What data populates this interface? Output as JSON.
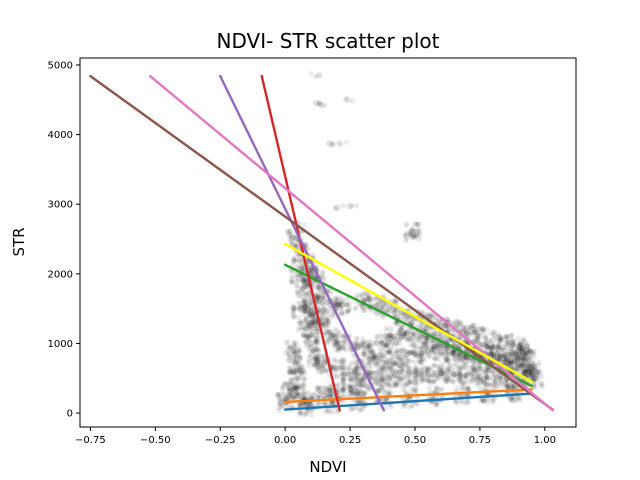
{
  "chart_data": {
    "type": "scatter",
    "title": "NDVI- STR scatter plot",
    "xlabel": "NDVI",
    "ylabel": "STR",
    "xlim": [
      -0.79,
      1.12
    ],
    "ylim": [
      -200,
      5100
    ],
    "x_ticks": [
      -0.75,
      -0.5,
      -0.25,
      0.0,
      0.25,
      0.5,
      0.75,
      1.0
    ],
    "x_tick_labels": [
      "−0.75",
      "−0.50",
      "−0.25",
      "0.00",
      "0.25",
      "0.50",
      "0.75",
      "1.00"
    ],
    "y_ticks": [
      0,
      1000,
      2000,
      3000,
      4000,
      5000
    ],
    "y_tick_labels": [
      "0",
      "1000",
      "2000",
      "3000",
      "4000",
      "5000"
    ],
    "grid": false,
    "scatter_color": "#000000",
    "scatter_points": [
      [
        0.13,
        4850
      ],
      [
        0.14,
        4420
      ],
      [
        0.12,
        4450
      ],
      [
        0.24,
        4500
      ],
      [
        0.17,
        3870
      ],
      [
        0.21,
        3870
      ],
      [
        0.25,
        2970
      ],
      [
        0.2,
        2950
      ],
      [
        0.49,
        2610
      ],
      [
        0.05,
        2720
      ],
      [
        0.04,
        2500
      ],
      [
        0.06,
        2300
      ],
      [
        0.08,
        2150
      ],
      [
        0.05,
        2000
      ],
      [
        0.1,
        2000
      ],
      [
        0.07,
        1800
      ],
      [
        0.12,
        1900
      ],
      [
        0.1,
        1600
      ],
      [
        0.15,
        1700
      ],
      [
        0.06,
        1500
      ],
      [
        0.12,
        1400
      ],
      [
        0.18,
        1500
      ],
      [
        0.22,
        1550
      ],
      [
        0.3,
        1600
      ],
      [
        0.35,
        1550
      ],
      [
        0.4,
        1500
      ],
      [
        0.45,
        1400
      ],
      [
        0.5,
        1350
      ],
      [
        0.55,
        1300
      ],
      [
        0.6,
        1250
      ],
      [
        0.65,
        1200
      ],
      [
        0.7,
        1150
      ],
      [
        0.75,
        1100
      ],
      [
        0.8,
        1050
      ],
      [
        0.85,
        1000
      ],
      [
        0.9,
        950
      ],
      [
        0.93,
        900
      ],
      [
        0.08,
        1200
      ],
      [
        0.1,
        1000
      ],
      [
        0.12,
        800
      ],
      [
        0.15,
        700
      ],
      [
        0.2,
        650
      ],
      [
        0.25,
        600
      ],
      [
        0.3,
        650
      ],
      [
        0.35,
        700
      ],
      [
        0.4,
        750
      ],
      [
        0.45,
        800
      ],
      [
        0.5,
        850
      ],
      [
        0.55,
        900
      ],
      [
        0.6,
        880
      ],
      [
        0.65,
        850
      ],
      [
        0.7,
        800
      ],
      [
        0.75,
        760
      ],
      [
        0.8,
        740
      ],
      [
        0.85,
        720
      ],
      [
        0.9,
        700
      ],
      [
        0.93,
        650
      ],
      [
        0.02,
        300
      ],
      [
        0.05,
        250
      ],
      [
        0.1,
        200
      ],
      [
        0.15,
        250
      ],
      [
        0.2,
        300
      ],
      [
        0.25,
        350
      ],
      [
        0.3,
        400
      ],
      [
        0.35,
        450
      ],
      [
        0.4,
        500
      ],
      [
        0.45,
        520
      ],
      [
        0.5,
        540
      ],
      [
        0.55,
        560
      ],
      [
        0.6,
        580
      ],
      [
        0.65,
        560
      ],
      [
        0.7,
        540
      ],
      [
        0.75,
        520
      ],
      [
        0.8,
        500
      ],
      [
        0.85,
        480
      ],
      [
        0.9,
        450
      ],
      [
        0.03,
        900
      ],
      [
        0.04,
        700
      ],
      [
        0.05,
        500
      ],
      [
        0.1,
        1400
      ],
      [
        0.14,
        1250
      ],
      [
        0.18,
        1100
      ],
      [
        0.22,
        1000
      ],
      [
        0.28,
        950
      ],
      [
        0.33,
        900
      ],
      [
        0.38,
        1000
      ],
      [
        0.42,
        1100
      ],
      [
        0.47,
        1150
      ],
      [
        0.52,
        1100
      ],
      [
        0.57,
        1050
      ],
      [
        0.62,
        1000
      ],
      [
        0.67,
        950
      ],
      [
        0.72,
        900
      ],
      [
        0.77,
        850
      ],
      [
        0.82,
        800
      ],
      [
        0.87,
        760
      ],
      [
        0.92,
        800
      ],
      [
        0.95,
        600
      ],
      [
        0.96,
        500
      ],
      [
        0.0,
        150
      ],
      [
        0.08,
        100
      ],
      [
        0.18,
        120
      ],
      [
        0.28,
        160
      ],
      [
        0.38,
        200
      ],
      [
        0.48,
        220
      ],
      [
        0.58,
        240
      ],
      [
        0.68,
        260
      ],
      [
        0.78,
        280
      ],
      [
        0.88,
        300
      ]
    ],
    "series": [
      {
        "color": "#1f77b4",
        "x": [
          0.0,
          0.95
        ],
        "y": [
          50,
          280
        ]
      },
      {
        "color": "#ff7f0e",
        "x": [
          0.0,
          0.95
        ],
        "y": [
          160,
          340
        ]
      },
      {
        "color": "#2ca02c",
        "x": [
          0.0,
          0.95
        ],
        "y": [
          2130,
          390
        ]
      },
      {
        "color": "#d62728",
        "x": [
          -0.09,
          0.21
        ],
        "y": [
          4840,
          40
        ]
      },
      {
        "color": "#9467bd",
        "x": [
          -0.25,
          0.38
        ],
        "y": [
          4840,
          40
        ]
      },
      {
        "color": "#8c564b",
        "x": [
          -0.75,
          1.03
        ],
        "y": [
          4840,
          50
        ]
      },
      {
        "color": "#e377c2",
        "x": [
          -0.52,
          1.03
        ],
        "y": [
          4840,
          40
        ]
      },
      {
        "color": "#ffff00",
        "x": [
          0.0,
          0.95
        ],
        "y": [
          2430,
          450
        ]
      }
    ]
  }
}
